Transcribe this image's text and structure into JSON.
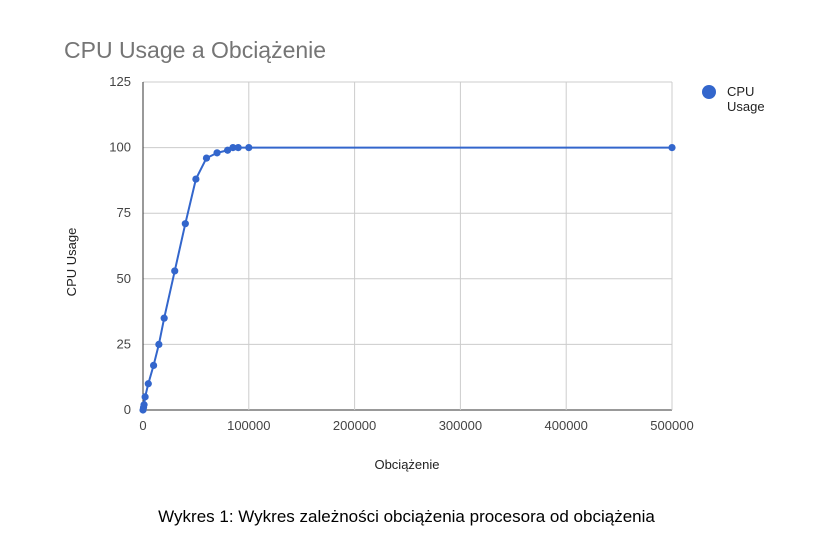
{
  "chart_data": {
    "type": "line",
    "title": "CPU Usage a Obciążenie",
    "xlabel": "Obciążenie",
    "ylabel": "CPU Usage",
    "xlim": [
      0,
      500000
    ],
    "ylim": [
      0,
      125
    ],
    "x_ticks": [
      0,
      100000,
      200000,
      300000,
      400000,
      500000
    ],
    "x_tick_labels": [
      "0",
      "100000",
      "200000",
      "300000",
      "400000",
      "500000"
    ],
    "y_ticks": [
      0,
      25,
      50,
      75,
      100,
      125
    ],
    "y_tick_labels": [
      "0",
      "25",
      "50",
      "75",
      "100",
      "125"
    ],
    "grid": true,
    "legend_position": "top-right",
    "series": [
      {
        "name": "CPU Usage",
        "color": "#3366cc",
        "x": [
          0,
          500,
          1000,
          2000,
          5000,
          10000,
          15000,
          20000,
          30000,
          40000,
          50000,
          60000,
          70000,
          80000,
          85000,
          90000,
          100000,
          500000
        ],
        "y": [
          0,
          1,
          2,
          5,
          10,
          17,
          25,
          35,
          53,
          71,
          88,
          96,
          98,
          99,
          100,
          100,
          100,
          100
        ]
      }
    ]
  },
  "caption": "Wykres 1: Wykres zależności obciążenia procesora od obciążenia"
}
